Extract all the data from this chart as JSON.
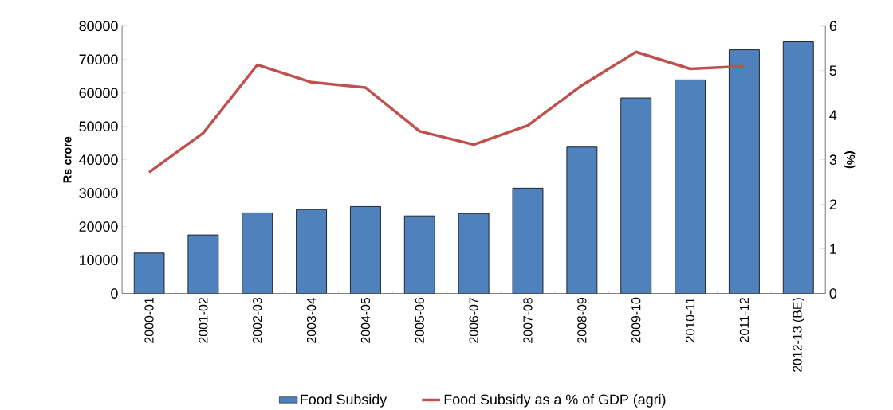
{
  "chart_data": {
    "type": "bar",
    "categories": [
      "2000-01",
      "2001-02",
      "2002-03",
      "2003-04",
      "2004-05",
      "2005-06",
      "2006-07",
      "2007-08",
      "2008-09",
      "2009-10",
      "2010-11",
      "2011-12",
      "2012-13 (BE)"
    ],
    "series": [
      {
        "name": "Food Subsidy",
        "color": "#4f81bd",
        "values": [
          12100,
          17500,
          24100,
          25100,
          26000,
          23200,
          23900,
          31500,
          43800,
          58500,
          63900,
          72900,
          75300
        ]
      },
      {
        "name": "Food Subsidy as a % of GDP (agri)",
        "type": "line",
        "axis": "y2",
        "color": "#c0504d",
        "values": [
          2.72,
          3.6,
          5.13,
          4.74,
          4.62,
          3.64,
          3.34,
          3.77,
          4.67,
          5.42,
          5.04,
          5.1,
          null
        ]
      }
    ],
    "ylabel": "Rs crore",
    "y2label": "(%)",
    "ylim": [
      0,
      80000
    ],
    "yticks": [
      0,
      10000,
      20000,
      30000,
      40000,
      50000,
      60000,
      70000,
      80000
    ],
    "y2lim": [
      0,
      6
    ],
    "y2ticks": [
      0,
      1,
      2,
      3,
      4,
      5,
      6
    ],
    "legend": "bottom"
  }
}
